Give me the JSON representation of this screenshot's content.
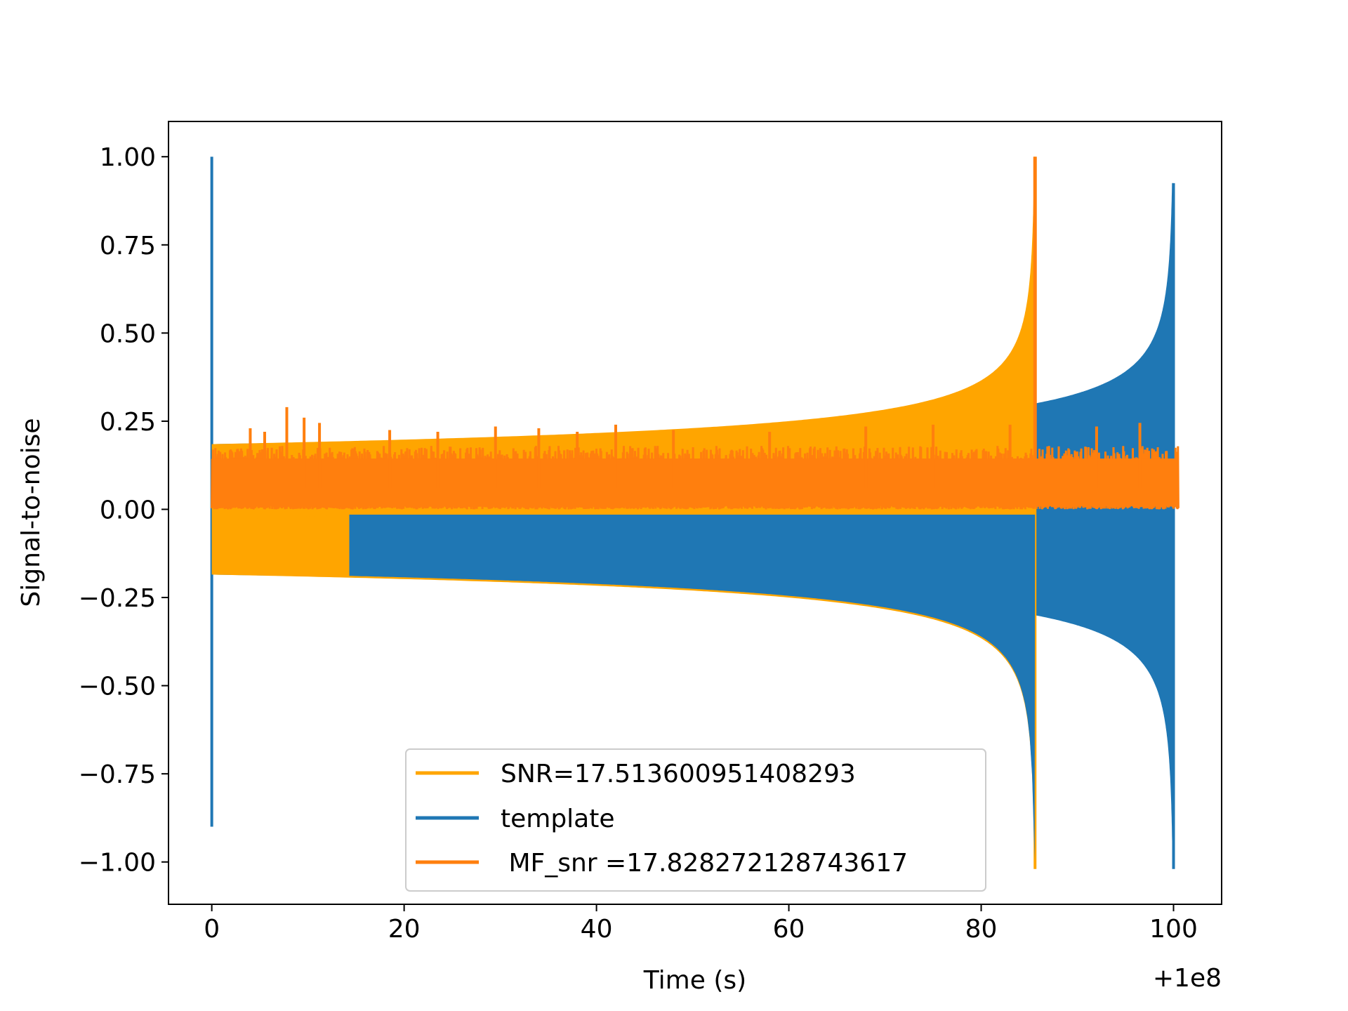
{
  "chart_data": {
    "type": "line",
    "title": "",
    "xlabel": "Time (s)",
    "ylabel": "Signal-to-noise",
    "x_offset_label": "+1e8",
    "xlim": [
      -4.5,
      105
    ],
    "ylim": [
      -1.12,
      1.1
    ],
    "xticks": [
      0,
      20,
      40,
      60,
      80,
      100
    ],
    "xtick_labels": [
      "0",
      "20",
      "40",
      "60",
      "80",
      "100"
    ],
    "yticks": [
      1.0,
      0.75,
      0.5,
      0.25,
      0.0,
      -0.25,
      -0.5,
      -0.75,
      -1.0
    ],
    "ytick_labels": [
      "1.00",
      "0.75",
      "0.50",
      "0.25",
      "0.00",
      "−0.25",
      "−0.50",
      "−0.75",
      "−1.00"
    ],
    "grid": false,
    "legend_position": "lower-center",
    "series": [
      {
        "name": "SNR=17.513600951408293",
        "color": "#ffa500",
        "kind": "chirp",
        "t_start": 0.0,
        "t_merge": 85.6,
        "envelope_start": 0.185,
        "envelope_peak": 1.0,
        "envelope_min": -1.02,
        "gap_start": 0.0,
        "gap_end": 14.3
      },
      {
        "name": "template",
        "color": "#1f77b4",
        "kind": "chirp",
        "t_start": 0.0,
        "t_merge": 100.0,
        "envelope_start": 0.185,
        "envelope_peak": 0.925,
        "envelope_min": -1.02,
        "edge_spike_max": 1.0,
        "edge_spike_min": -0.9
      },
      {
        "name": " MF_snr =17.828272128743617",
        "color": "#ff7f0e",
        "kind": "noise",
        "t_start": 0.0,
        "t_end": 100.5,
        "band_low": 0.0,
        "band_high": 0.18,
        "spike_times": [
          4.0,
          5.5,
          7.8,
          9.6,
          11.2,
          18.5,
          23.5,
          29.5,
          34.0,
          38.0,
          42.0,
          48.0,
          58.0,
          68.0,
          75.0,
          83.0,
          92.0,
          96.5
        ],
        "spike_values": [
          0.23,
          0.22,
          0.29,
          0.26,
          0.245,
          0.225,
          0.22,
          0.235,
          0.23,
          0.22,
          0.24,
          0.225,
          0.22,
          0.235,
          0.24,
          0.24,
          0.235,
          0.245
        ],
        "peak_time": 85.6,
        "peak_value": 1.0
      }
    ]
  }
}
